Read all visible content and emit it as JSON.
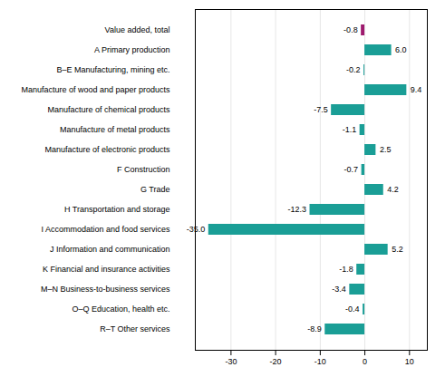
{
  "chart_data": {
    "type": "bar",
    "orientation": "horizontal",
    "categories": [
      "R–T Other services",
      "O–Q Education, health etc.",
      "M–N Business-to-business services",
      "K Financial and insurance activities",
      "J Information and communication",
      "I Accommodation and food services",
      "H Transportation and storage",
      "G Trade",
      "F Construction",
      "Manufacture of electronic products",
      "Manufacture of metal products",
      "Manufacture of chemical products",
      "Manufacture of wood and paper products",
      "B–E Manufacturing, mining etc.",
      "A Primary production",
      "Value added, total"
    ],
    "values": [
      -8.9,
      -0.4,
      -3.4,
      -1.8,
      5.2,
      -35.0,
      -12.3,
      4.2,
      -0.7,
      2.5,
      -1.1,
      -7.5,
      9.4,
      -0.2,
      6.0,
      -0.8
    ],
    "value_labels": [
      "-8.9",
      "-0.4",
      "-3.4",
      "-1.8",
      "5.2",
      "-35.0",
      "-12.3",
      "4.2",
      "-0.7",
      "2.5",
      "-1.1",
      "-7.5",
      "9.4",
      "-0.2",
      "6.0",
      "-0.8"
    ],
    "colors": [
      "#1a9e96",
      "#1a9e96",
      "#1a9e96",
      "#1a9e96",
      "#1a9e96",
      "#1a9e96",
      "#1a9e96",
      "#1a9e96",
      "#1a9e96",
      "#1a9e96",
      "#1a9e96",
      "#1a9e96",
      "#1a9e96",
      "#1a9e96",
      "#1a9e96",
      "#9e1a6e"
    ],
    "data_labels": true,
    "xlim": [
      -38,
      14
    ],
    "xticks": [
      -30,
      -20,
      -10,
      0,
      10
    ],
    "grid": true
  }
}
